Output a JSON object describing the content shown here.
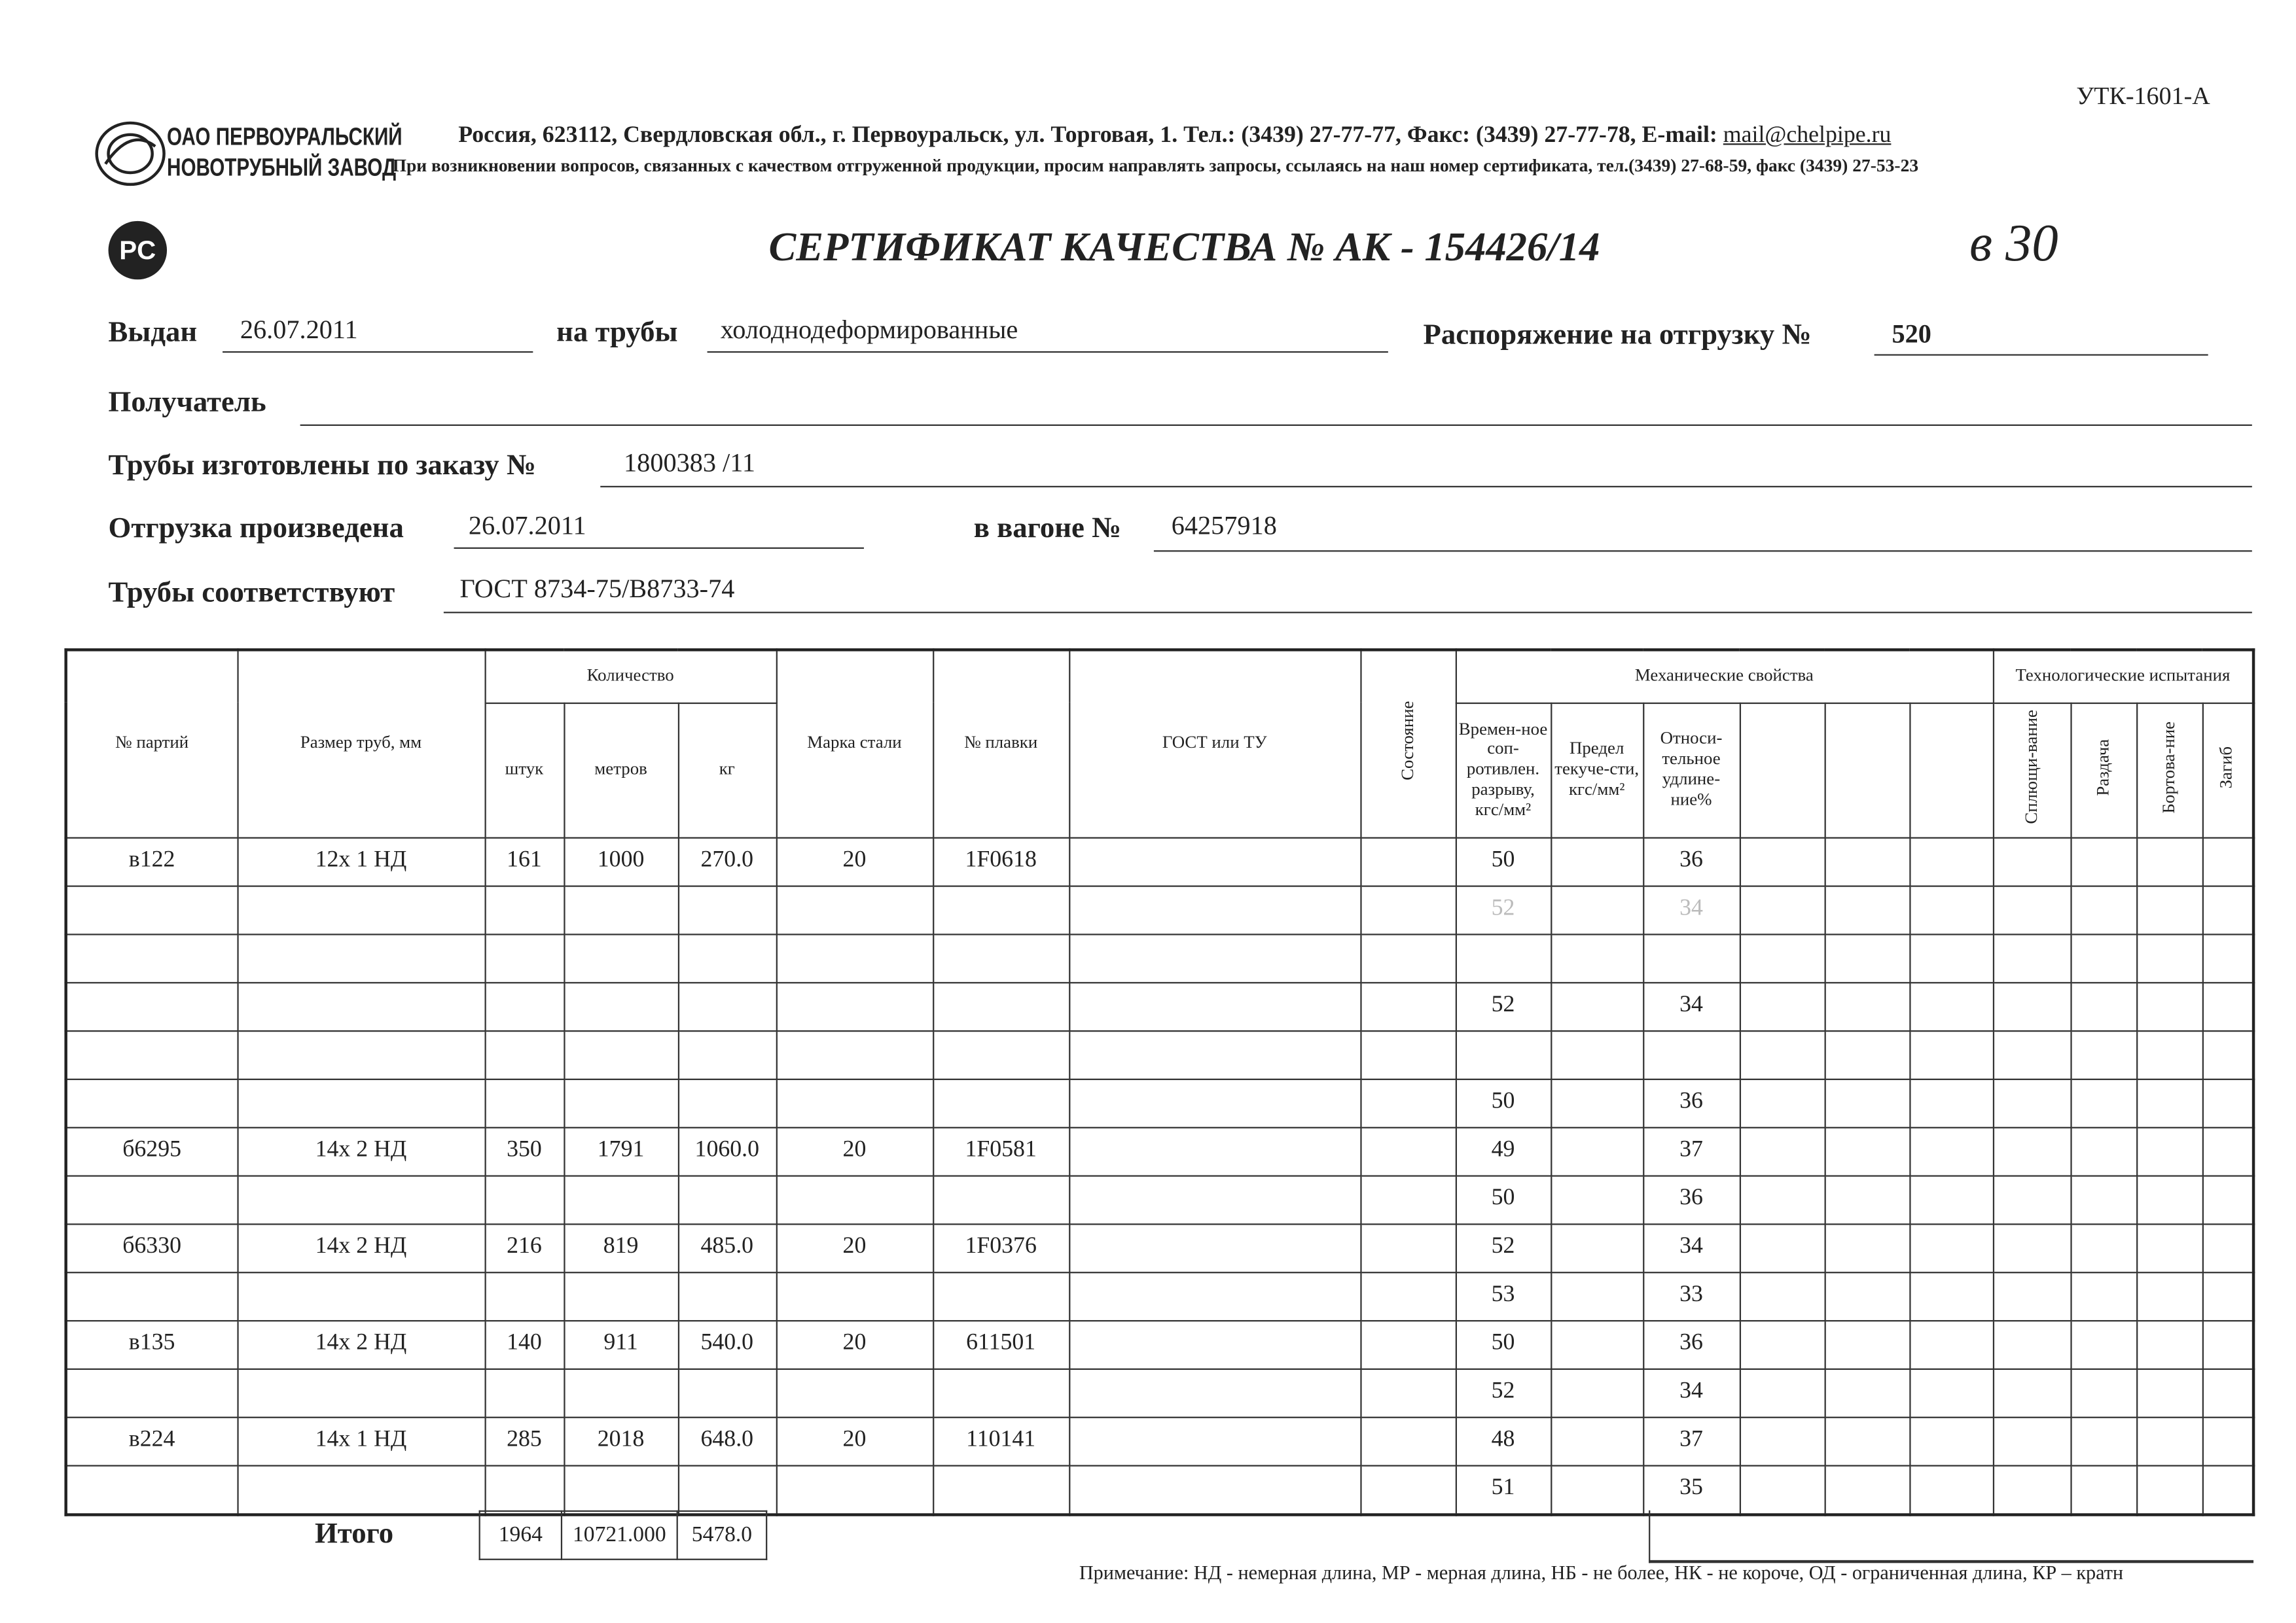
{
  "form_code": "УТК-1601-А",
  "company": {
    "name_line1": "ОАО ПЕРВОУРАЛЬСКИЙ",
    "name_line2": "НОВОТРУБНЫЙ ЗАВОД",
    "address": "Россия, 623112, Свердловская обл., г. Первоуральск, ул. Торговая, 1. Тел.: (3439) 27-77-77, Факс: (3439) 27-77-78,  E-mail:",
    "email": "mail@chelpipe.ru",
    "notice": "При возникновении вопросов, связанных с качеством отгруженной продукции, просим направлять запросы, ссылаясь на наш номер сертификата, тел.(3439) 27-68-59, факс (3439) 27-53-23",
    "cert_logo": "РСТ"
  },
  "title": "СЕРТИФИКАТ КАЧЕСТВА   №  АК -  154426/14",
  "handwritten": "в 30",
  "fields": {
    "issued_label": "Выдан",
    "issued": "26.07.2011",
    "pipes_label": "на трубы",
    "pipes": "холоднодеформированные",
    "order_label": "Распоряжение на отгрузку №",
    "order": "520",
    "recipient_label": "Получатель",
    "recipient": "",
    "made_label": "Трубы изготовлены по заказу №",
    "made": "1800383  /11",
    "shipped_label": "Отгрузка произведена",
    "shipped": "26.07.2011",
    "wagon_label": "в вагоне №",
    "wagon": "64257918",
    "conform_label": "Трубы соответствуют",
    "conform": "ГОСТ 8734-75/В8733-74"
  },
  "table": {
    "headers": {
      "batch": "№ партий",
      "size": "Размер труб, мм",
      "qty": "Количество",
      "pcs": "штук",
      "meters": "метров",
      "kg": "кг",
      "steel": "Марка стали",
      "melt": "№ плавки",
      "gost": "ГОСТ или ТУ",
      "state": "Состояние",
      "mech": "Механические свойства",
      "tensile": "Времен-ное соп-ротивлен. разрыву, кгс/мм²",
      "yield": "Предел текуче-сти, кгс/мм²",
      "elong": "Относи-тельное удлине-ние%",
      "tech": "Технологические испытания",
      "flat": "Сплющи-вание",
      "expand": "Раздача",
      "flange": "Бортова-ние",
      "bend": "Загиб"
    },
    "rows": [
      {
        "batch": "в122",
        "size": "12х 1 НД",
        "pcs": "161",
        "meters": "1000",
        "kg": "270.0",
        "steel": "20",
        "melt": "1F0618",
        "tensile": "50",
        "elong": "36"
      },
      {
        "tensile": "52",
        "elong": "34",
        "faded": true
      },
      {
        "faded": true
      },
      {
        "tensile": "52",
        "elong": "34"
      },
      {
        "faded": true
      },
      {
        "tensile": "50",
        "elong": "36"
      },
      {
        "batch": "б6295",
        "size": "14х 2 НД",
        "pcs": "350",
        "meters": "1791",
        "kg": "1060.0",
        "steel": "20",
        "melt": "1F0581",
        "tensile": "49",
        "elong": "37"
      },
      {
        "tensile": "50",
        "elong": "36"
      },
      {
        "batch": "б6330",
        "size": "14х 2 НД",
        "pcs": "216",
        "meters": "819",
        "kg": "485.0",
        "steel": "20",
        "melt": "1F0376",
        "tensile": "52",
        "elong": "34"
      },
      {
        "tensile": "53",
        "elong": "33"
      },
      {
        "batch": "в135",
        "size": "14х 2 НД",
        "pcs": "140",
        "meters": "911",
        "kg": "540.0",
        "steel": "20",
        "melt": "611501",
        "tensile": "50",
        "elong": "36"
      },
      {
        "tensile": "52",
        "elong": "34"
      },
      {
        "batch": "в224",
        "size": "14х 1 НД",
        "pcs": "285",
        "meters": "2018",
        "kg": "648.0",
        "steel": "20",
        "melt": "110141",
        "tensile": "48",
        "elong": "37"
      },
      {
        "tensile": "51",
        "elong": "35"
      }
    ],
    "totals": {
      "label": "Итого",
      "pcs": "1964",
      "meters": "10721.000",
      "kg": "5478.0"
    }
  },
  "note": "Примечание: НД - немерная длина, МР - мерная длина, НБ - не более, НК - не короче, ОД - ограниченная длина, КР – кратн"
}
